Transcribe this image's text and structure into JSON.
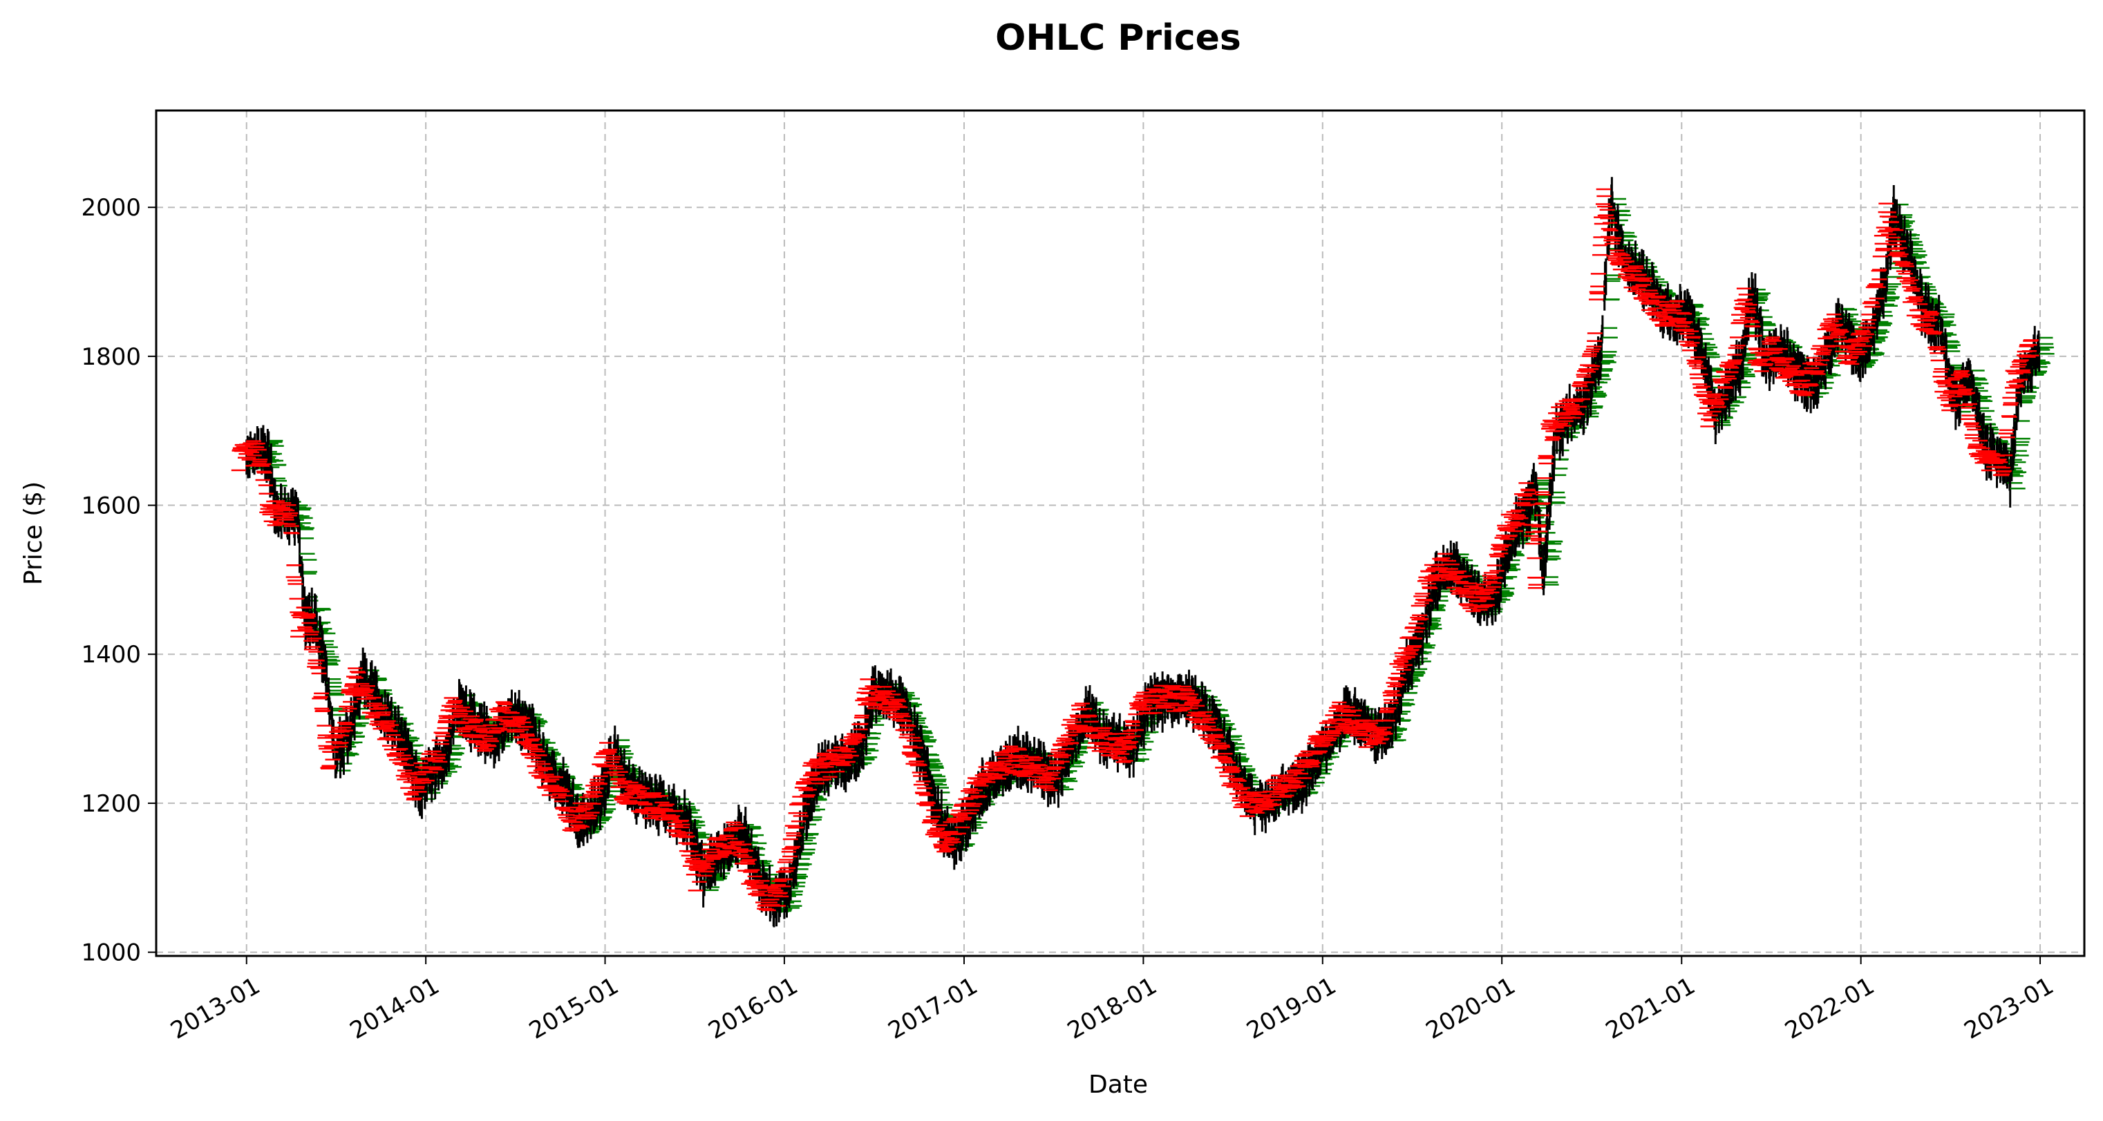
{
  "chart_data": {
    "type": "ohlc",
    "title": "OHLC Prices",
    "xlabel": "Date",
    "ylabel": "Price ($)",
    "ylim": [
      995,
      2130
    ],
    "xlim": [
      "2012-07-01",
      "2023-04-01"
    ],
    "yticks": [
      1000,
      1200,
      1400,
      1600,
      1800,
      2000
    ],
    "xticks": [
      "2013-01",
      "2014-01",
      "2015-01",
      "2016-01",
      "2017-01",
      "2018-01",
      "2019-01",
      "2020-01",
      "2021-01",
      "2022-01",
      "2023-01"
    ],
    "grid": true,
    "grid_style": "dashed",
    "colors": {
      "tick_open": "#ff0000",
      "tick_close": "#008000",
      "wick": "#000000",
      "grid": "#bbbbbb"
    },
    "price_path": [
      [
        "2013-01-01",
        1665
      ],
      [
        "2013-02-15",
        1670
      ],
      [
        "2013-03-01",
        1590
      ],
      [
        "2013-04-15",
        1585
      ],
      [
        "2013-05-01",
        1440
      ],
      [
        "2013-05-20",
        1450
      ],
      [
        "2013-06-10",
        1380
      ],
      [
        "2013-07-01",
        1260
      ],
      [
        "2013-08-01",
        1300
      ],
      [
        "2013-08-25",
        1370
      ],
      [
        "2013-10-01",
        1330
      ],
      [
        "2013-11-15",
        1280
      ],
      [
        "2013-12-20",
        1220
      ],
      [
        "2014-01-10",
        1240
      ],
      [
        "2014-02-10",
        1260
      ],
      [
        "2014-03-10",
        1330
      ],
      [
        "2014-04-20",
        1300
      ],
      [
        "2014-05-20",
        1285
      ],
      [
        "2014-06-20",
        1320
      ],
      [
        "2014-08-01",
        1300
      ],
      [
        "2014-09-10",
        1240
      ],
      [
        "2014-10-20",
        1210
      ],
      [
        "2014-11-10",
        1170
      ],
      [
        "2014-12-20",
        1200
      ],
      [
        "2015-01-20",
        1270
      ],
      [
        "2015-02-20",
        1220
      ],
      [
        "2015-04-10",
        1200
      ],
      [
        "2015-05-20",
        1190
      ],
      [
        "2015-06-20",
        1170
      ],
      [
        "2015-07-20",
        1100
      ],
      [
        "2015-08-20",
        1130
      ],
      [
        "2015-10-10",
        1160
      ],
      [
        "2015-11-10",
        1100
      ],
      [
        "2015-12-10",
        1070
      ],
      [
        "2016-01-10",
        1080
      ],
      [
        "2016-02-10",
        1180
      ],
      [
        "2016-03-10",
        1240
      ],
      [
        "2016-04-10",
        1250
      ],
      [
        "2016-05-10",
        1260
      ],
      [
        "2016-06-10",
        1280
      ],
      [
        "2016-07-01",
        1350
      ],
      [
        "2016-08-10",
        1340
      ],
      [
        "2016-09-10",
        1320
      ],
      [
        "2016-10-10",
        1260
      ],
      [
        "2016-11-10",
        1180
      ],
      [
        "2016-12-10",
        1150
      ],
      [
        "2017-01-10",
        1180
      ],
      [
        "2017-02-10",
        1220
      ],
      [
        "2017-03-10",
        1240
      ],
      [
        "2017-04-20",
        1260
      ],
      [
        "2017-06-01",
        1250
      ],
      [
        "2017-07-10",
        1230
      ],
      [
        "2017-08-10",
        1280
      ],
      [
        "2017-09-10",
        1320
      ],
      [
        "2017-10-10",
        1290
      ],
      [
        "2017-11-10",
        1280
      ],
      [
        "2017-12-10",
        1270
      ],
      [
        "2018-01-10",
        1330
      ],
      [
        "2018-02-20",
        1340
      ],
      [
        "2018-04-10",
        1340
      ],
      [
        "2018-05-10",
        1320
      ],
      [
        "2018-06-10",
        1290
      ],
      [
        "2018-07-10",
        1240
      ],
      [
        "2018-08-10",
        1200
      ],
      [
        "2018-09-20",
        1200
      ],
      [
        "2018-10-20",
        1220
      ],
      [
        "2018-11-20",
        1230
      ],
      [
        "2018-12-20",
        1260
      ],
      [
        "2019-01-20",
        1290
      ],
      [
        "2019-02-20",
        1320
      ],
      [
        "2019-03-20",
        1310
      ],
      [
        "2019-04-20",
        1290
      ],
      [
        "2019-05-20",
        1300
      ],
      [
        "2019-06-20",
        1380
      ],
      [
        "2019-07-20",
        1420
      ],
      [
        "2019-08-20",
        1500
      ],
      [
        "2019-09-20",
        1520
      ],
      [
        "2019-10-20",
        1500
      ],
      [
        "2019-11-20",
        1470
      ],
      [
        "2019-12-20",
        1480
      ],
      [
        "2020-01-20",
        1560
      ],
      [
        "2020-02-20",
        1590
      ],
      [
        "2020-03-10",
        1620
      ],
      [
        "2020-03-25",
        1500
      ],
      [
        "2020-04-20",
        1700
      ],
      [
        "2020-05-20",
        1720
      ],
      [
        "2020-06-20",
        1740
      ],
      [
        "2020-07-20",
        1800
      ],
      [
        "2020-08-10",
        2010
      ],
      [
        "2020-08-25",
        1960
      ],
      [
        "2020-09-20",
        1920
      ],
      [
        "2020-10-20",
        1900
      ],
      [
        "2020-11-20",
        1870
      ],
      [
        "2020-12-20",
        1850
      ],
      [
        "2021-01-10",
        1860
      ],
      [
        "2021-02-10",
        1810
      ],
      [
        "2021-03-10",
        1720
      ],
      [
        "2021-04-10",
        1760
      ],
      [
        "2021-05-01",
        1790
      ],
      [
        "2021-05-25",
        1890
      ],
      [
        "2021-06-20",
        1790
      ],
      [
        "2021-07-20",
        1810
      ],
      [
        "2021-08-20",
        1780
      ],
      [
        "2021-09-20",
        1760
      ],
      [
        "2021-10-20",
        1790
      ],
      [
        "2021-11-20",
        1850
      ],
      [
        "2021-12-20",
        1800
      ],
      [
        "2022-01-20",
        1820
      ],
      [
        "2022-02-20",
        1900
      ],
      [
        "2022-03-08",
        1990
      ],
      [
        "2022-04-10",
        1930
      ],
      [
        "2022-05-10",
        1860
      ],
      [
        "2022-06-10",
        1840
      ],
      [
        "2022-07-10",
        1740
      ],
      [
        "2022-08-10",
        1770
      ],
      [
        "2022-09-10",
        1680
      ],
      [
        "2022-10-10",
        1660
      ],
      [
        "2022-11-01",
        1640
      ],
      [
        "2022-11-20",
        1760
      ],
      [
        "2022-12-10",
        1790
      ],
      [
        "2023-01-01",
        1815
      ]
    ]
  }
}
